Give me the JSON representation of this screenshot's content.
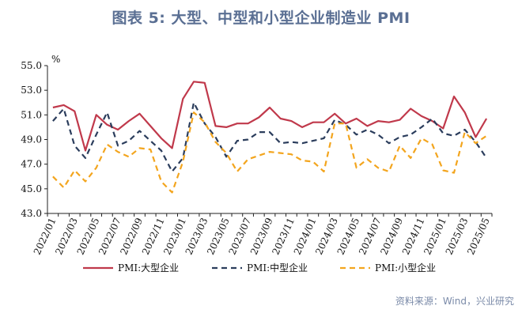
{
  "title": "图表 5:    大型、中型和小型企业制造业 PMI",
  "source": "资料来源：Wind，兴业研究",
  "chart_data": {
    "type": "line",
    "ylabel": "%",
    "ylim": [
      43.0,
      55.0
    ],
    "yticks": [
      "43.0",
      "45.0",
      "47.0",
      "49.0",
      "51.0",
      "53.0",
      "55.0"
    ],
    "x": [
      "2022/01",
      "2022/02",
      "2022/03",
      "2022/04",
      "2022/05",
      "2022/06",
      "2022/07",
      "2022/08",
      "2022/09",
      "2022/10",
      "2022/11",
      "2022/12",
      "2023/01",
      "2023/02",
      "2023/03",
      "2023/04",
      "2023/05",
      "2023/06",
      "2023/07",
      "2023/08",
      "2023/09",
      "2023/10",
      "2023/11",
      "2023/12",
      "2024/01",
      "2024/02",
      "2024/03",
      "2024/04",
      "2024/05",
      "2024/06",
      "2024/07",
      "2024/08",
      "2024/09",
      "2024/10",
      "2024/11",
      "2024/12",
      "2025/01",
      "2025/02",
      "2025/03",
      "2025/04",
      "2025/05"
    ],
    "xticks": [
      "2022/01",
      "2022/03",
      "2022/05",
      "2022/07",
      "2022/09",
      "2022/11",
      "2023/01",
      "2023/03",
      "2023/05",
      "2023/07",
      "2023/09",
      "2023/11",
      "2024/01",
      "2024/03",
      "2024/05",
      "2024/07",
      "2024/09",
      "2024/11",
      "2025/01",
      "2025/03",
      "2025/05"
    ],
    "series": [
      {
        "name": "PMI:大型企业",
        "color": "#c0394b",
        "dash": "solid",
        "values": [
          51.6,
          51.8,
          51.3,
          48.1,
          51.0,
          50.2,
          49.8,
          50.5,
          51.1,
          50.1,
          49.1,
          48.3,
          52.3,
          53.7,
          53.6,
          50.1,
          50.0,
          50.3,
          50.3,
          50.8,
          51.6,
          50.7,
          50.5,
          50.0,
          50.4,
          50.4,
          51.1,
          50.3,
          50.7,
          50.1,
          50.5,
          50.4,
          50.6,
          51.5,
          50.9,
          50.5,
          49.9,
          52.5,
          51.2,
          49.2,
          50.7
        ]
      },
      {
        "name": "PMI:中型企业",
        "color": "#2b3d5c",
        "dash": "dashed",
        "values": [
          50.5,
          51.5,
          48.5,
          47.5,
          49.4,
          51.2,
          48.5,
          48.9,
          49.7,
          48.9,
          48.1,
          46.4,
          47.5,
          52.0,
          50.3,
          49.2,
          47.6,
          48.9,
          49.0,
          49.6,
          49.6,
          48.7,
          48.8,
          48.7,
          48.9,
          49.1,
          50.6,
          50.2,
          49.4,
          49.8,
          49.4,
          48.7,
          49.2,
          49.4,
          50.0,
          50.7,
          49.5,
          49.3,
          49.8,
          48.8,
          47.5
        ]
      },
      {
        "name": "PMI:小型企业",
        "color": "#f3a51e",
        "dash": "dashed",
        "values": [
          46.0,
          45.1,
          46.5,
          45.6,
          46.7,
          48.6,
          48.0,
          47.6,
          48.3,
          48.2,
          45.6,
          44.7,
          47.2,
          51.2,
          50.4,
          48.8,
          47.9,
          46.4,
          47.4,
          47.7,
          48.0,
          47.9,
          47.8,
          47.3,
          47.2,
          46.4,
          50.3,
          50.3,
          46.7,
          47.4,
          46.7,
          46.4,
          48.5,
          47.5,
          49.1,
          48.6,
          46.5,
          46.3,
          49.6,
          48.7,
          49.3
        ]
      }
    ],
    "legend": "bottom"
  }
}
